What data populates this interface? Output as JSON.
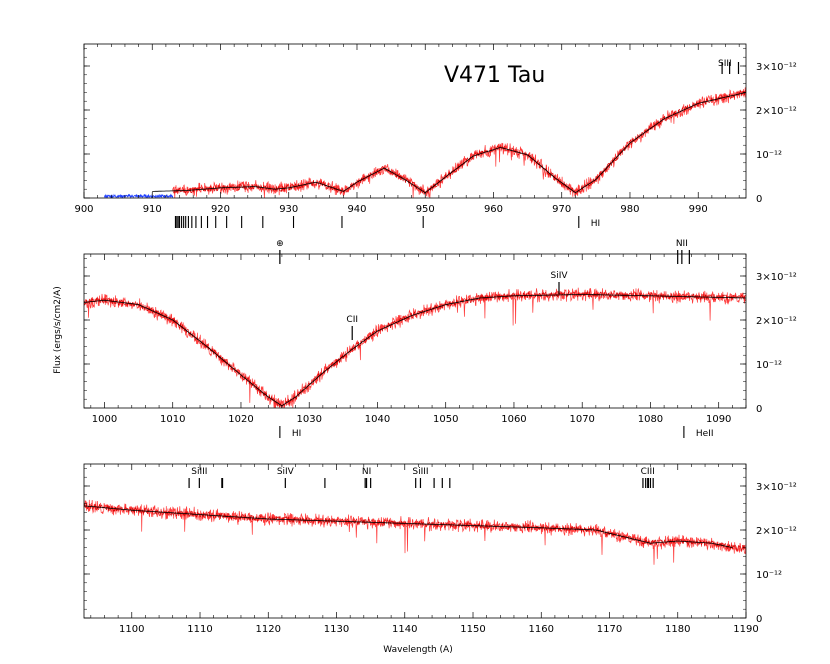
{
  "chart_data": [
    {
      "type": "line",
      "title": "V471 Tau",
      "xlim": [
        900,
        997
      ],
      "ylim": [
        0,
        3.5e-12
      ],
      "x_ticks": [
        900,
        910,
        920,
        930,
        940,
        950,
        960,
        970,
        980,
        990
      ],
      "right_ticks": [
        {
          "value": 0,
          "label": "0"
        },
        {
          "value": 1e-12,
          "label": "10⁻¹²"
        },
        {
          "value": 2e-12,
          "label": "2×10⁻¹²"
        },
        {
          "value": 3e-12,
          "label": "3×10⁻¹²"
        }
      ],
      "model": [
        [
          910,
          1.5e-13
        ],
        [
          915,
          1.7e-13
        ],
        [
          920,
          2.3e-13
        ],
        [
          925,
          2.6e-13
        ],
        [
          928,
          2e-13
        ],
        [
          930,
          2.3e-13
        ],
        [
          934,
          3.6e-13
        ],
        [
          938,
          1.5e-13
        ],
        [
          940,
          3.6e-13
        ],
        [
          944,
          6.8e-13
        ],
        [
          947,
          4.2e-13
        ],
        [
          950,
          1.2e-13
        ],
        [
          953,
          4.8e-13
        ],
        [
          957,
          9.5e-13
        ],
        [
          961,
          1.15e-12
        ],
        [
          965,
          9.8e-13
        ],
        [
          969,
          4.6e-13
        ],
        [
          972,
          1.2e-13
        ],
        [
          975,
          4.2e-13
        ],
        [
          980,
          1.25e-12
        ],
        [
          985,
          1.8e-12
        ],
        [
          990,
          2.15e-12
        ],
        [
          997,
          2.4e-12
        ]
      ],
      "spectrum_seed": 1,
      "blue_segment": {
        "from": 903,
        "to": 913,
        "level": 3e-14
      },
      "upper_marks": [
        {
          "x": 993.5,
          "label": "SIII"
        }
      ],
      "upper_ticks": [
        993.5,
        994.6,
        995.9
      ],
      "lower_marks": [
        {
          "x": 972.5,
          "label": "HI"
        }
      ],
      "lower_ticks": [
        972.5,
        949.7,
        937.8,
        930.7,
        926.2,
        923.1,
        920.9,
        919.3,
        918.1,
        917.2,
        916.4,
        915.8,
        915.3,
        914.9,
        914.6,
        914.3,
        914.0,
        913.8,
        913.6,
        913.4
      ]
    },
    {
      "type": "line",
      "ylabel": "Flux (ergs/s/cm2/A)",
      "xlim": [
        997,
        1094
      ],
      "ylim": [
        0,
        3.5e-12
      ],
      "x_ticks": [
        1000,
        1010,
        1020,
        1030,
        1040,
        1050,
        1060,
        1070,
        1080,
        1090
      ],
      "right_ticks": [
        {
          "value": 0,
          "label": "0"
        },
        {
          "value": 1e-12,
          "label": "10⁻¹²"
        },
        {
          "value": 2e-12,
          "label": "2×10⁻¹²"
        },
        {
          "value": 3e-12,
          "label": "3×10⁻¹²"
        }
      ],
      "model": [
        [
          997,
          2.4e-12
        ],
        [
          1000,
          2.45e-12
        ],
        [
          1005,
          2.35e-12
        ],
        [
          1010,
          2e-12
        ],
        [
          1015,
          1.4e-12
        ],
        [
          1020,
          7.5e-13
        ],
        [
          1024,
          2.5e-13
        ],
        [
          1026,
          5e-14
        ],
        [
          1028,
          2.5e-13
        ],
        [
          1032,
          8e-13
        ],
        [
          1036,
          1.3e-12
        ],
        [
          1040,
          1.75e-12
        ],
        [
          1045,
          2.1e-12
        ],
        [
          1050,
          2.35e-12
        ],
        [
          1055,
          2.5e-12
        ],
        [
          1060,
          2.55e-12
        ],
        [
          1070,
          2.58e-12
        ],
        [
          1080,
          2.55e-12
        ],
        [
          1094,
          2.5e-12
        ]
      ],
      "spectrum_seed": 2,
      "upper_marks": [
        {
          "x": 1025.7,
          "label": "⊕"
        },
        {
          "x": 1036.3,
          "label": "CII"
        },
        {
          "x": 1066.6,
          "label": "SiIV"
        },
        {
          "x": 1084.6,
          "label": "NII"
        }
      ],
      "upper_ticks": [
        1025.7,
        1036.3,
        1066.6,
        1083.99,
        1084.6,
        1085.7
      ],
      "lower_marks": [
        {
          "x": 1025.7,
          "label": "HI"
        },
        {
          "x": 1084.9,
          "label": "HeII"
        }
      ],
      "lower_ticks": [
        1025.7,
        1084.9
      ]
    },
    {
      "type": "line",
      "xlabel": "Wavelength (A)",
      "xlim": [
        1093,
        1190
      ],
      "ylim": [
        0,
        3.5e-12
      ],
      "x_ticks": [
        1100,
        1110,
        1120,
        1130,
        1140,
        1150,
        1160,
        1170,
        1180,
        1190
      ],
      "right_ticks": [
        {
          "value": 0,
          "label": "0"
        },
        {
          "value": 1e-12,
          "label": "10⁻¹²"
        },
        {
          "value": 2e-12,
          "label": "2×10⁻¹²"
        },
        {
          "value": 3e-12,
          "label": "3×10⁻¹²"
        }
      ],
      "model": [
        [
          1093,
          2.55e-12
        ],
        [
          1100,
          2.45e-12
        ],
        [
          1110,
          2.35e-12
        ],
        [
          1120,
          2.25e-12
        ],
        [
          1130,
          2.2e-12
        ],
        [
          1140,
          2.15e-12
        ],
        [
          1150,
          2.1e-12
        ],
        [
          1160,
          2.05e-12
        ],
        [
          1168,
          2e-12
        ],
        [
          1172,
          1.85e-12
        ],
        [
          1176,
          1.7e-12
        ],
        [
          1180,
          1.75e-12
        ],
        [
          1185,
          1.7e-12
        ],
        [
          1188,
          1.6e-12
        ]
      ],
      "spectrum_seed": 3,
      "upper_marks": [
        {
          "x": 1109.9,
          "label": "SiIII"
        },
        {
          "x": 1122.5,
          "label": "SiIV"
        },
        {
          "x": 1134.4,
          "label": "NI"
        },
        {
          "x": 1142.3,
          "label": "SiIII"
        },
        {
          "x": 1175.6,
          "label": "CIII"
        }
      ],
      "upper_ticks": [
        1108.4,
        1109.9,
        1113.2,
        1113.3,
        1122.5,
        1128.3,
        1134.2,
        1134.4,
        1135.0,
        1141.6,
        1142.3,
        1144.3,
        1145.5,
        1146.6,
        1174.9,
        1175.3,
        1175.6,
        1175.7,
        1176.0,
        1176.4
      ],
      "lower_marks": [],
      "lower_ticks": []
    }
  ]
}
